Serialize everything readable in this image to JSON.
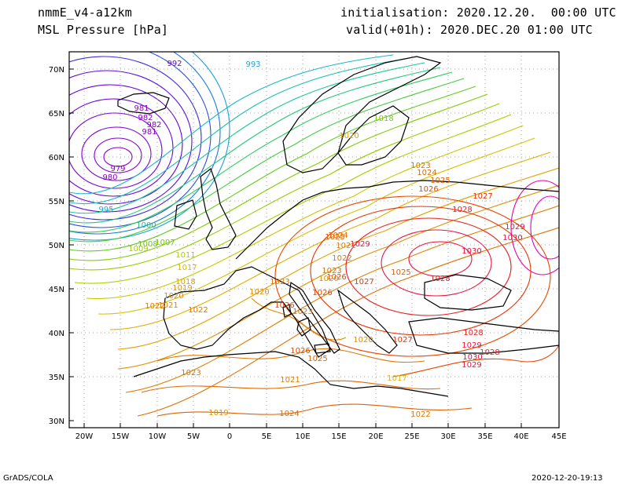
{
  "header": {
    "model": "nmmE_v4-a12km",
    "field": "MSL Pressure [hPa]",
    "init": "initialisation: 2020.12.20.  00:00 UTC",
    "valid": "valid(+01h): 2020.DEC.20 01:00 UTC"
  },
  "axes": {
    "lat_labels": [
      "70N",
      "65N",
      "60N",
      "55N",
      "50N",
      "45N",
      "40N",
      "35N",
      "30N"
    ],
    "lon_labels": [
      "20W",
      "15W",
      "10W",
      "5W",
      "0",
      "5E",
      "10E",
      "15E",
      "20E",
      "25E",
      "30E",
      "35E",
      "40E",
      "45E"
    ]
  },
  "contour_labels": [
    {
      "text": "992",
      "color": "#6a00e0"
    },
    {
      "text": "993",
      "color": "#1aa7d8"
    },
    {
      "text": "981",
      "color": "#8800c8"
    },
    {
      "text": "982",
      "color": "#8800c8"
    },
    {
      "text": "982",
      "color": "#8800c8"
    },
    {
      "text": "981",
      "color": "#8800c8"
    },
    {
      "text": "979",
      "color": "#8800c8"
    },
    {
      "text": "980",
      "color": "#8800c8"
    },
    {
      "text": "995",
      "color": "#1aa7d8"
    },
    {
      "text": "1000",
      "color": "#22c080"
    },
    {
      "text": "1008",
      "color": "#6ccc00"
    },
    {
      "text": "1007",
      "color": "#6ccc00"
    },
    {
      "text": "1009",
      "color": "#a8cc00"
    },
    {
      "text": "1011",
      "color": "#b8cc00"
    },
    {
      "text": "1017",
      "color": "#e0b400"
    },
    {
      "text": "1018",
      "color": "#e0a000"
    },
    {
      "text": "1019",
      "color": "#e09400"
    },
    {
      "text": "1020",
      "color": "#e08c00"
    },
    {
      "text": "1021",
      "color": "#e08000"
    },
    {
      "text": "1022",
      "color": "#e07a00"
    },
    {
      "text": "1022",
      "color": "#e07a00"
    },
    {
      "text": "1020",
      "color": "#e08c00"
    },
    {
      "text": "1018",
      "color": "#7ad000"
    },
    {
      "text": "1020",
      "color": "#e0a000"
    },
    {
      "text": "1023",
      "color": "#e07000"
    },
    {
      "text": "1024",
      "color": "#e06a00"
    },
    {
      "text": "1025",
      "color": "#e06000"
    },
    {
      "text": "1026",
      "color": "#e84800"
    },
    {
      "text": "1027",
      "color": "#e83400"
    },
    {
      "text": "1028",
      "color": "#e82020"
    },
    {
      "text": "1029",
      "color": "#e81840"
    },
    {
      "text": "1030",
      "color": "#e81040"
    },
    {
      "text": "1029",
      "color": "#e81840"
    },
    {
      "text": "1030",
      "color": "#e81040"
    },
    {
      "text": "1028",
      "color": "#e82020"
    },
    {
      "text": "1027",
      "color": "#e83400"
    },
    {
      "text": "1025",
      "color": "#e06000"
    },
    {
      "text": "1024",
      "color": "#e06a00"
    },
    {
      "text": "1023",
      "color": "#e07000"
    },
    {
      "text": "1026",
      "color": "#e84800"
    },
    {
      "text": "1028",
      "color": "#e82020"
    },
    {
      "text": "1029",
      "color": "#e81840"
    },
    {
      "text": "1030",
      "color": "#e81040"
    },
    {
      "text": "1029",
      "color": "#e81840"
    },
    {
      "text": "1028",
      "color": "#e82020"
    },
    {
      "text": "1027",
      "color": "#e83400"
    },
    {
      "text": "1026",
      "color": "#e84800"
    },
    {
      "text": "1025",
      "color": "#e06000"
    },
    {
      "text": "1021",
      "color": "#e08000"
    },
    {
      "text": "1020",
      "color": "#e08c00"
    },
    {
      "text": "1019",
      "color": "#e09400"
    },
    {
      "text": "1017",
      "color": "#e0b400"
    },
    {
      "text": "1022",
      "color": "#e07a00"
    },
    {
      "text": "1024",
      "color": "#e06a00"
    },
    {
      "text": "1023",
      "color": "#e07000"
    },
    {
      "text": "1022",
      "color": "#e07a00"
    },
    {
      "text": "1023",
      "color": "#e07000"
    },
    {
      "text": "1026",
      "color": "#e84800"
    },
    {
      "text": "1020",
      "color": "#e08c00"
    },
    {
      "text": "1026",
      "color": "#e84800"
    },
    {
      "text": "1023",
      "color": "#e07000"
    },
    {
      "text": "1025",
      "color": "#e06000"
    },
    {
      "text": "1021",
      "color": "#e08000"
    }
  ],
  "footer": {
    "left": "GrADS/COLA",
    "right": "2020-12-20-19:13"
  }
}
